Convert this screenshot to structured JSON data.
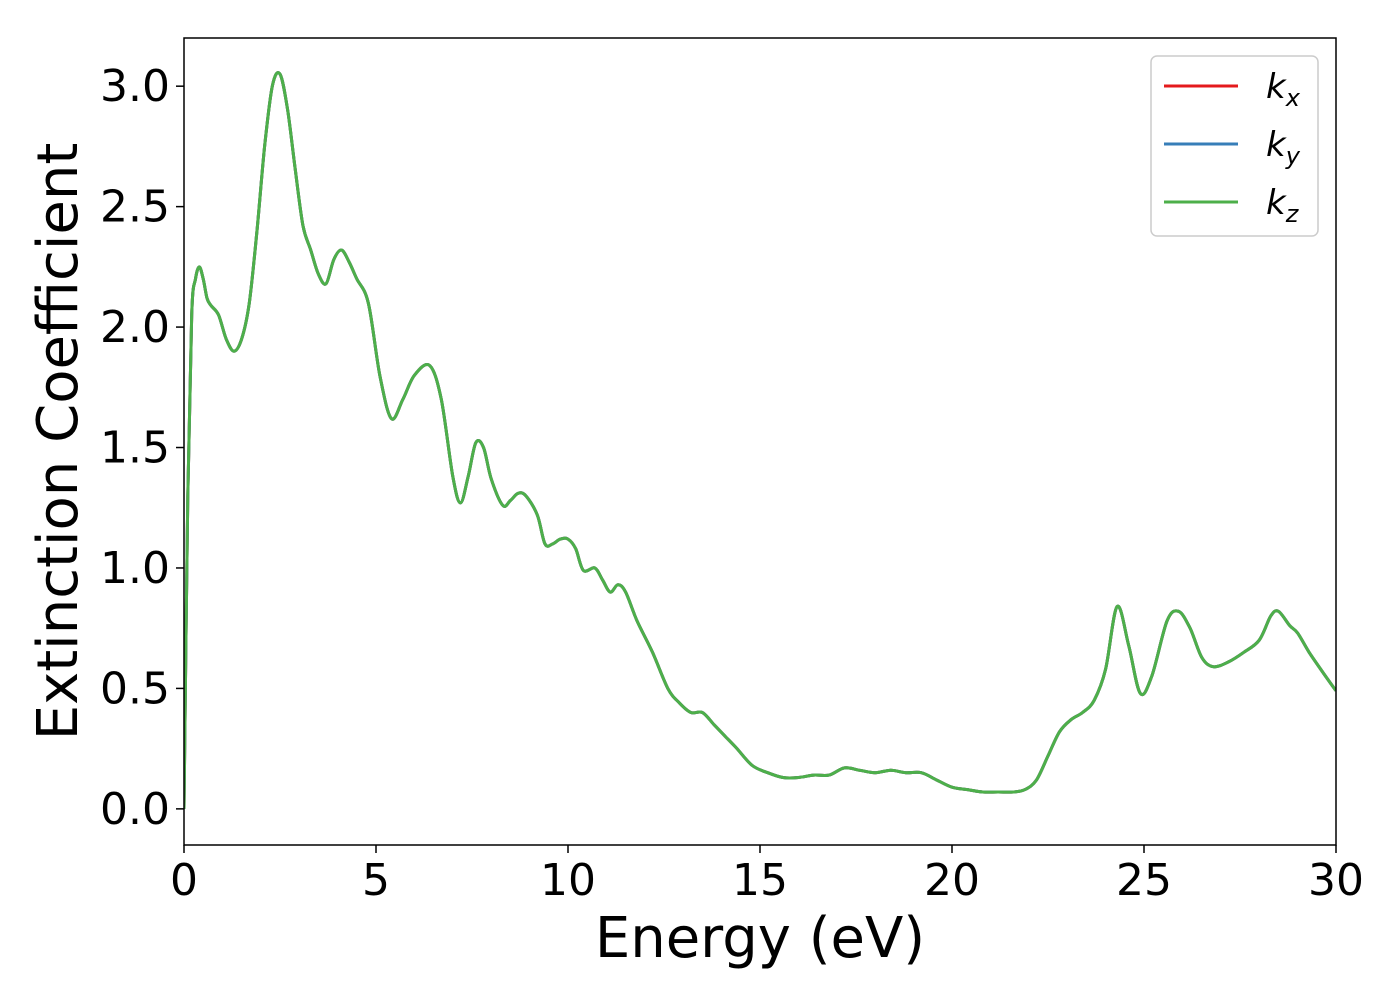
{
  "chart_data": {
    "type": "line",
    "title": "",
    "xlabel": "Energy (eV)",
    "ylabel": "Extinction Coefficient",
    "xlim": [
      0,
      30
    ],
    "ylim": [
      -0.15,
      3.2
    ],
    "xticks": [
      0,
      5,
      10,
      15,
      20,
      25,
      30
    ],
    "xtick_labels": [
      "0",
      "5",
      "10",
      "15",
      "20",
      "25",
      "30"
    ],
    "yticks": [
      0.0,
      0.5,
      1.0,
      1.5,
      2.0,
      2.5,
      3.0
    ],
    "ytick_labels": [
      "0.0",
      "0.5",
      "1.0",
      "1.5",
      "2.0",
      "2.5",
      "3.0"
    ],
    "grid": false,
    "legend_position": "top-right",
    "series": [
      {
        "name": "k",
        "subscript": "x",
        "color": "#e41a1c",
        "x": [
          0,
          0.1,
          0.2,
          0.3,
          0.4,
          0.5,
          0.6,
          0.7,
          0.9,
          1.1,
          1.3,
          1.5,
          1.7,
          1.9,
          2.1,
          2.3,
          2.5,
          2.7,
          2.9,
          3.1,
          3.3,
          3.5,
          3.7,
          3.9,
          4.1,
          4.3,
          4.5,
          4.8,
          5.1,
          5.4,
          5.7,
          6.0,
          6.4,
          6.7,
          7.0,
          7.2,
          7.4,
          7.6,
          7.8,
          8.0,
          8.3,
          8.5,
          8.7,
          8.9,
          9.2,
          9.4,
          9.6,
          9.8,
          10.0,
          10.2,
          10.4,
          10.7,
          10.9,
          11.1,
          11.3,
          11.5,
          11.8,
          12.2,
          12.6,
          12.9,
          13.2,
          13.5,
          13.8,
          14.1,
          14.4,
          14.8,
          15.2,
          15.6,
          16.0,
          16.4,
          16.8,
          17.2,
          17.6,
          18.0,
          18.4,
          18.8,
          19.2,
          19.6,
          20.0,
          20.4,
          20.8,
          21.2,
          21.6,
          21.9,
          22.2,
          22.5,
          22.8,
          23.1,
          23.4,
          23.7,
          24.0,
          24.3,
          24.6,
          24.9,
          25.2,
          25.6,
          25.9,
          26.2,
          26.5,
          26.8,
          27.2,
          27.6,
          28.0,
          28.3,
          28.5,
          28.8,
          29.0,
          29.3,
          29.6,
          30.0
        ],
        "values": [
          0.0,
          1.3,
          2.05,
          2.2,
          2.25,
          2.2,
          2.12,
          2.09,
          2.05,
          1.95,
          1.9,
          1.95,
          2.1,
          2.4,
          2.75,
          3.0,
          3.05,
          2.9,
          2.65,
          2.42,
          2.32,
          2.22,
          2.18,
          2.28,
          2.32,
          2.27,
          2.2,
          2.1,
          1.8,
          1.62,
          1.7,
          1.8,
          1.84,
          1.7,
          1.38,
          1.27,
          1.38,
          1.52,
          1.5,
          1.37,
          1.26,
          1.28,
          1.31,
          1.3,
          1.22,
          1.1,
          1.1,
          1.12,
          1.12,
          1.08,
          0.99,
          1.0,
          0.95,
          0.9,
          0.93,
          0.9,
          0.78,
          0.65,
          0.5,
          0.44,
          0.4,
          0.4,
          0.35,
          0.3,
          0.25,
          0.18,
          0.15,
          0.13,
          0.13,
          0.14,
          0.14,
          0.17,
          0.16,
          0.15,
          0.16,
          0.15,
          0.15,
          0.12,
          0.09,
          0.08,
          0.07,
          0.07,
          0.07,
          0.08,
          0.12,
          0.22,
          0.32,
          0.37,
          0.4,
          0.45,
          0.58,
          0.84,
          0.68,
          0.48,
          0.55,
          0.78,
          0.82,
          0.75,
          0.63,
          0.59,
          0.61,
          0.65,
          0.7,
          0.8,
          0.82,
          0.76,
          0.73,
          0.65,
          0.58,
          0.49
        ]
      },
      {
        "name": "k",
        "subscript": "y",
        "color": "#377eb8",
        "x": [
          0,
          0.1,
          0.2,
          0.3,
          0.4,
          0.5,
          0.6,
          0.7,
          0.9,
          1.1,
          1.3,
          1.5,
          1.7,
          1.9,
          2.1,
          2.3,
          2.5,
          2.7,
          2.9,
          3.1,
          3.3,
          3.5,
          3.7,
          3.9,
          4.1,
          4.3,
          4.5,
          4.8,
          5.1,
          5.4,
          5.7,
          6.0,
          6.4,
          6.7,
          7.0,
          7.2,
          7.4,
          7.6,
          7.8,
          8.0,
          8.3,
          8.5,
          8.7,
          8.9,
          9.2,
          9.4,
          9.6,
          9.8,
          10.0,
          10.2,
          10.4,
          10.7,
          10.9,
          11.1,
          11.3,
          11.5,
          11.8,
          12.2,
          12.6,
          12.9,
          13.2,
          13.5,
          13.8,
          14.1,
          14.4,
          14.8,
          15.2,
          15.6,
          16.0,
          16.4,
          16.8,
          17.2,
          17.6,
          18.0,
          18.4,
          18.8,
          19.2,
          19.6,
          20.0,
          20.4,
          20.8,
          21.2,
          21.6,
          21.9,
          22.2,
          22.5,
          22.8,
          23.1,
          23.4,
          23.7,
          24.0,
          24.3,
          24.6,
          24.9,
          25.2,
          25.6,
          25.9,
          26.2,
          26.5,
          26.8,
          27.2,
          27.6,
          28.0,
          28.3,
          28.5,
          28.8,
          29.0,
          29.3,
          29.6,
          30.0
        ],
        "values": [
          0.0,
          1.3,
          2.05,
          2.2,
          2.25,
          2.2,
          2.12,
          2.09,
          2.05,
          1.95,
          1.9,
          1.95,
          2.1,
          2.4,
          2.75,
          3.0,
          3.05,
          2.9,
          2.65,
          2.42,
          2.32,
          2.22,
          2.18,
          2.28,
          2.32,
          2.27,
          2.2,
          2.1,
          1.8,
          1.62,
          1.7,
          1.8,
          1.84,
          1.7,
          1.38,
          1.27,
          1.38,
          1.52,
          1.5,
          1.37,
          1.26,
          1.28,
          1.31,
          1.3,
          1.22,
          1.1,
          1.1,
          1.12,
          1.12,
          1.08,
          0.99,
          1.0,
          0.95,
          0.9,
          0.93,
          0.9,
          0.78,
          0.65,
          0.5,
          0.44,
          0.4,
          0.4,
          0.35,
          0.3,
          0.25,
          0.18,
          0.15,
          0.13,
          0.13,
          0.14,
          0.14,
          0.17,
          0.16,
          0.15,
          0.16,
          0.15,
          0.15,
          0.12,
          0.09,
          0.08,
          0.07,
          0.07,
          0.07,
          0.08,
          0.12,
          0.22,
          0.32,
          0.37,
          0.4,
          0.45,
          0.58,
          0.84,
          0.68,
          0.48,
          0.55,
          0.78,
          0.82,
          0.75,
          0.63,
          0.59,
          0.61,
          0.65,
          0.7,
          0.8,
          0.82,
          0.76,
          0.73,
          0.65,
          0.58,
          0.49
        ]
      },
      {
        "name": "k",
        "subscript": "z",
        "color": "#4daf4a",
        "x": [
          0,
          0.1,
          0.2,
          0.3,
          0.4,
          0.5,
          0.6,
          0.7,
          0.9,
          1.1,
          1.3,
          1.5,
          1.7,
          1.9,
          2.1,
          2.3,
          2.5,
          2.7,
          2.9,
          3.1,
          3.3,
          3.5,
          3.7,
          3.9,
          4.1,
          4.3,
          4.5,
          4.8,
          5.1,
          5.4,
          5.7,
          6.0,
          6.4,
          6.7,
          7.0,
          7.2,
          7.4,
          7.6,
          7.8,
          8.0,
          8.3,
          8.5,
          8.7,
          8.9,
          9.2,
          9.4,
          9.6,
          9.8,
          10.0,
          10.2,
          10.4,
          10.7,
          10.9,
          11.1,
          11.3,
          11.5,
          11.8,
          12.2,
          12.6,
          12.9,
          13.2,
          13.5,
          13.8,
          14.1,
          14.4,
          14.8,
          15.2,
          15.6,
          16.0,
          16.4,
          16.8,
          17.2,
          17.6,
          18.0,
          18.4,
          18.8,
          19.2,
          19.6,
          20.0,
          20.4,
          20.8,
          21.2,
          21.6,
          21.9,
          22.2,
          22.5,
          22.8,
          23.1,
          23.4,
          23.7,
          24.0,
          24.3,
          24.6,
          24.9,
          25.2,
          25.6,
          25.9,
          26.2,
          26.5,
          26.8,
          27.2,
          27.6,
          28.0,
          28.3,
          28.5,
          28.8,
          29.0,
          29.3,
          29.6,
          30.0
        ],
        "values": [
          0.0,
          1.3,
          2.05,
          2.2,
          2.25,
          2.2,
          2.12,
          2.09,
          2.05,
          1.95,
          1.9,
          1.95,
          2.1,
          2.4,
          2.75,
          3.0,
          3.05,
          2.9,
          2.65,
          2.42,
          2.32,
          2.22,
          2.18,
          2.28,
          2.32,
          2.27,
          2.2,
          2.1,
          1.8,
          1.62,
          1.7,
          1.8,
          1.84,
          1.7,
          1.38,
          1.27,
          1.38,
          1.52,
          1.5,
          1.37,
          1.26,
          1.28,
          1.31,
          1.3,
          1.22,
          1.1,
          1.1,
          1.12,
          1.12,
          1.08,
          0.99,
          1.0,
          0.95,
          0.9,
          0.93,
          0.9,
          0.78,
          0.65,
          0.5,
          0.44,
          0.4,
          0.4,
          0.35,
          0.3,
          0.25,
          0.18,
          0.15,
          0.13,
          0.13,
          0.14,
          0.14,
          0.17,
          0.16,
          0.15,
          0.16,
          0.15,
          0.15,
          0.12,
          0.09,
          0.08,
          0.07,
          0.07,
          0.07,
          0.08,
          0.12,
          0.22,
          0.32,
          0.37,
          0.4,
          0.45,
          0.58,
          0.84,
          0.68,
          0.48,
          0.55,
          0.78,
          0.82,
          0.75,
          0.63,
          0.59,
          0.61,
          0.65,
          0.7,
          0.8,
          0.82,
          0.76,
          0.73,
          0.65,
          0.58,
          0.49
        ]
      }
    ]
  }
}
